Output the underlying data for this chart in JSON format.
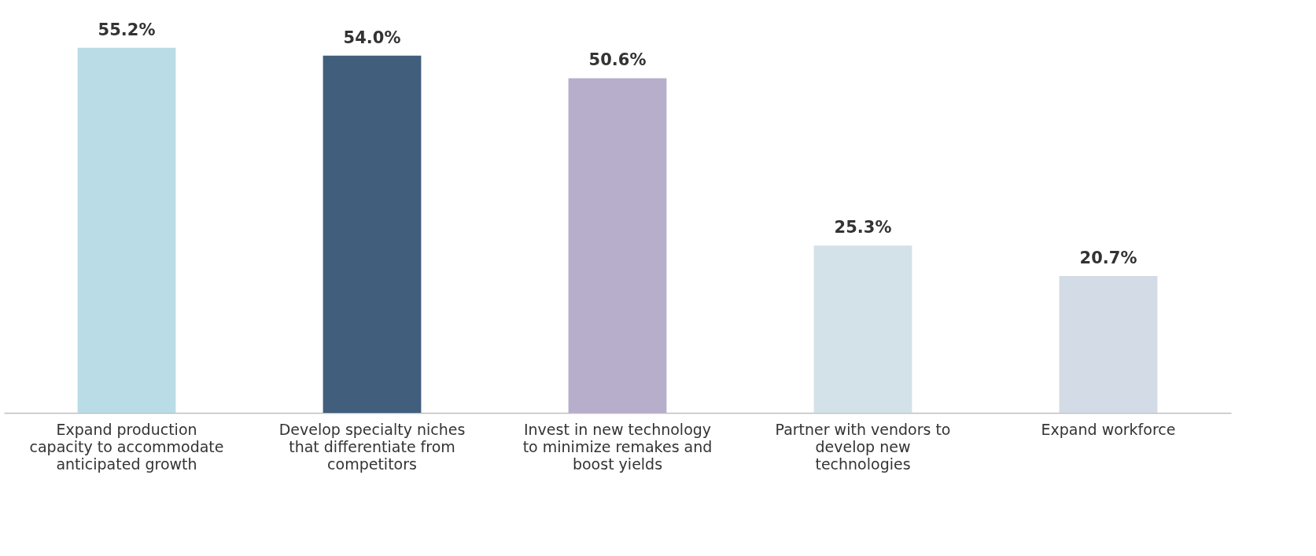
{
  "chart_data": {
    "type": "bar",
    "categories": [
      "Expand production\ncapacity to accommodate\nanticipated growth",
      "Develop specialty niches\nthat differentiate from\ncompetitors",
      "Invest in new technology\nto minimize remakes and\nboost yields",
      "Partner with vendors to\ndevelop new\ntechnologies",
      "Expand workforce"
    ],
    "values": [
      55.2,
      54.0,
      50.6,
      25.3,
      20.7
    ],
    "value_labels": [
      "55.2%",
      "54.0%",
      "50.6%",
      "25.3%",
      "20.7%"
    ],
    "colors": [
      "#b9dce7",
      "#415f7d",
      "#b7aecb",
      "#d3e1e8",
      "#d2dbe6"
    ],
    "grid": false
  }
}
